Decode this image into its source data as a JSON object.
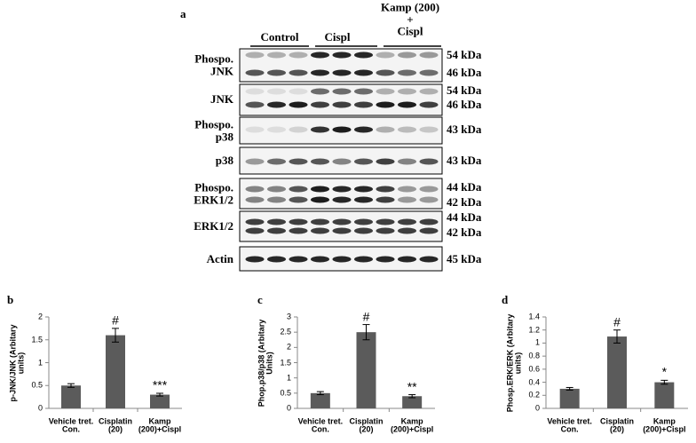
{
  "panel_labels": [
    "a",
    "b",
    "c",
    "d"
  ],
  "blot": {
    "groups": [
      "Control",
      "Cispl",
      "Kamp (200)\n+\nCispl"
    ],
    "rows": [
      {
        "label": "Phospo.\nJNK",
        "sizes": [
          "54 kDa",
          "46 kDa"
        ]
      },
      {
        "label": "JNK",
        "sizes": [
          "54 kDa",
          "46 kDa"
        ]
      },
      {
        "label": "Phospo.\np38",
        "sizes": [
          "43 kDa"
        ]
      },
      {
        "label": "p38",
        "sizes": [
          "43 kDa"
        ]
      },
      {
        "label": "Phospo.\nERK1/2",
        "sizes": [
          "44 kDa",
          "42 kDa"
        ]
      },
      {
        "label": "ERK1/2",
        "sizes": [
          "44 kDa",
          "42 kDa"
        ]
      },
      {
        "label": "Actin",
        "sizes": [
          "45 kDa"
        ]
      }
    ]
  },
  "chart_data": [
    {
      "type": "bar",
      "ylabel": "p-JNK/JNK (Arbitary\nunits)",
      "categories": [
        "Vehicle tret.\nCon.",
        "Cisplatin\n(20)",
        "Kamp\n(200)+Cispl"
      ],
      "values": [
        0.5,
        1.6,
        0.3
      ],
      "errors": [
        0.04,
        0.15,
        0.03
      ],
      "color": "#5b5b5b",
      "ylim": [
        0,
        2
      ],
      "yticks": [
        0,
        0.5,
        1,
        1.5,
        2
      ],
      "annotations": [
        {
          "x": "Cisplatin\n(20)",
          "text": "#"
        },
        {
          "x": "Kamp\n(200)+Cispl",
          "text": "***"
        }
      ]
    },
    {
      "type": "bar",
      "ylabel": "Phop.p38/p38 (Arbitary\nUnits)",
      "categories": [
        "Vehicle tret.\nCon.",
        "Cisplatin\n(20)",
        "Kamp\n(200)+Cispl"
      ],
      "values": [
        0.5,
        2.5,
        0.4
      ],
      "errors": [
        0.05,
        0.25,
        0.05
      ],
      "color": "#5b5b5b",
      "ylim": [
        0,
        3
      ],
      "yticks": [
        0,
        0.5,
        1,
        1.5,
        2,
        2.5,
        3
      ],
      "annotations": [
        {
          "x": "Cisplatin\n(20)",
          "text": "#"
        },
        {
          "x": "Kamp\n(200)+Cispl",
          "text": "**"
        }
      ]
    },
    {
      "type": "bar",
      "ylabel": "Phosp.ERK/ERK (Arbitary\nunits)",
      "categories": [
        "Vehicle tret.\nCon.",
        "Cisplatin\n(20)",
        "Kamp\n(200)+Cispl"
      ],
      "values": [
        0.3,
        1.1,
        0.4
      ],
      "errors": [
        0.02,
        0.1,
        0.03
      ],
      "color": "#5b5b5b",
      "ylim": [
        0,
        1.4
      ],
      "yticks": [
        0,
        0.2,
        0.4,
        0.6,
        0.8,
        1,
        1.2,
        1.4
      ],
      "annotations": [
        {
          "x": "Cisplatin\n(20)",
          "text": "#"
        },
        {
          "x": "Kamp\n(200)+Cispl",
          "text": "*"
        }
      ]
    }
  ]
}
